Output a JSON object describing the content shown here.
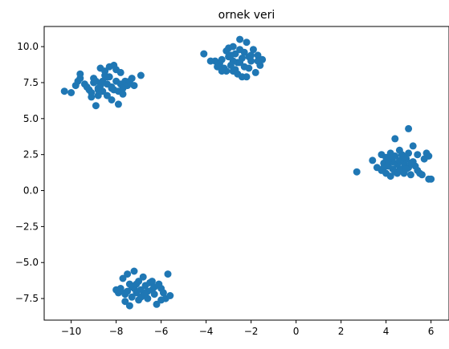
{
  "chart_data": {
    "type": "scatter",
    "title": "ornek veri",
    "xlabel": "",
    "ylabel": "",
    "xlim": [
      -11.2,
      6.8
    ],
    "ylim": [
      -9.0,
      11.4
    ],
    "x_ticks": [
      -10,
      -8,
      -6,
      -4,
      -2,
      0,
      2,
      4,
      6
    ],
    "y_ticks": [
      -7.5,
      -5.0,
      -2.5,
      0.0,
      2.5,
      5.0,
      7.5,
      10.0
    ],
    "x_tick_labels": [
      "−10",
      "−8",
      "−6",
      "−4",
      "−2",
      "0",
      "2",
      "4",
      "6"
    ],
    "y_tick_labels": [
      "−7.5",
      "−5.0",
      "−2.5",
      "0.0",
      "2.5",
      "5.0",
      "7.5",
      "10.0"
    ],
    "grid": false,
    "marker_color": "#1f77b4",
    "series": [
      {
        "points": [
          [
            -10.3,
            6.9
          ],
          [
            -10.0,
            6.8
          ],
          [
            -9.8,
            7.3
          ],
          [
            -9.7,
            7.6
          ],
          [
            -9.6,
            7.8
          ],
          [
            -9.6,
            8.1
          ],
          [
            -9.3,
            7.2
          ],
          [
            -9.2,
            7.0
          ],
          [
            -9.1,
            6.5
          ],
          [
            -9.1,
            6.8
          ],
          [
            -9.0,
            7.5
          ],
          [
            -9.0,
            7.8
          ],
          [
            -8.9,
            5.9
          ],
          [
            -8.8,
            6.6
          ],
          [
            -8.8,
            7.1
          ],
          [
            -8.7,
            7.3
          ],
          [
            -8.6,
            6.9
          ],
          [
            -8.6,
            7.6
          ],
          [
            -8.5,
            8.0
          ],
          [
            -8.5,
            8.3
          ],
          [
            -8.4,
            7.4
          ],
          [
            -8.4,
            6.6
          ],
          [
            -8.3,
            8.6
          ],
          [
            -8.3,
            7.9
          ],
          [
            -8.2,
            7.2
          ],
          [
            -8.2,
            6.3
          ],
          [
            -8.1,
            8.7
          ],
          [
            -8.1,
            7.0
          ],
          [
            -8.0,
            8.4
          ],
          [
            -8.0,
            7.6
          ],
          [
            -7.9,
            6.9
          ],
          [
            -7.9,
            6.0
          ],
          [
            -7.8,
            8.2
          ],
          [
            -7.8,
            7.4
          ],
          [
            -7.7,
            7.1
          ],
          [
            -7.6,
            7.6
          ],
          [
            -7.5,
            7.3
          ],
          [
            -7.4,
            7.6
          ],
          [
            -7.3,
            7.8
          ],
          [
            -7.2,
            7.3
          ],
          [
            -6.9,
            8.0
          ],
          [
            -8.7,
            8.5
          ],
          [
            -9.4,
            7.4
          ],
          [
            -8.8,
            7.0
          ],
          [
            -8.2,
            7.1
          ],
          [
            -7.7,
            6.7
          ],
          [
            -8.9,
            7.6
          ],
          [
            -8.4,
            7.9
          ]
        ]
      },
      {
        "points": [
          [
            -4.1,
            9.5
          ],
          [
            -3.6,
            9.0
          ],
          [
            -3.4,
            8.8
          ],
          [
            -3.3,
            9.1
          ],
          [
            -3.2,
            8.5
          ],
          [
            -3.1,
            8.3
          ],
          [
            -3.0,
            9.3
          ],
          [
            -3.0,
            9.9
          ],
          [
            -2.9,
            8.7
          ],
          [
            -2.8,
            10.0
          ],
          [
            -2.8,
            9.0
          ],
          [
            -2.7,
            9.5
          ],
          [
            -2.7,
            8.4
          ],
          [
            -2.6,
            8.9
          ],
          [
            -2.5,
            10.5
          ],
          [
            -2.5,
            9.8
          ],
          [
            -2.4,
            9.2
          ],
          [
            -2.4,
            7.9
          ],
          [
            -2.3,
            8.6
          ],
          [
            -2.3,
            9.6
          ],
          [
            -2.2,
            10.3
          ],
          [
            -2.1,
            9.3
          ],
          [
            -2.1,
            8.5
          ],
          [
            -2.0,
            9.0
          ],
          [
            -1.9,
            9.8
          ],
          [
            -1.8,
            8.2
          ],
          [
            -1.7,
            9.4
          ],
          [
            -1.6,
            8.7
          ],
          [
            -1.5,
            9.1
          ],
          [
            -2.6,
            8.1
          ],
          [
            -3.5,
            8.6
          ],
          [
            -2.9,
            9.4
          ],
          [
            -3.3,
            8.3
          ],
          [
            -2.0,
            9.4
          ],
          [
            -2.5,
            8.9
          ],
          [
            -3.8,
            9.0
          ],
          [
            -2.2,
            7.9
          ],
          [
            -1.7,
            9.0
          ],
          [
            -2.8,
            8.3
          ],
          [
            -3.1,
            9.7
          ]
        ]
      },
      {
        "points": [
          [
            2.7,
            1.3
          ],
          [
            3.4,
            2.1
          ],
          [
            3.6,
            1.6
          ],
          [
            3.8,
            1.4
          ],
          [
            3.8,
            2.5
          ],
          [
            3.9,
            1.9
          ],
          [
            4.0,
            2.3
          ],
          [
            4.0,
            1.2
          ],
          [
            4.1,
            1.7
          ],
          [
            4.2,
            2.6
          ],
          [
            4.2,
            1.0
          ],
          [
            4.3,
            2.0
          ],
          [
            4.3,
            1.5
          ],
          [
            4.4,
            3.6
          ],
          [
            4.4,
            2.4
          ],
          [
            4.5,
            1.8
          ],
          [
            4.5,
            1.2
          ],
          [
            4.6,
            2.8
          ],
          [
            4.6,
            2.1
          ],
          [
            4.7,
            1.5
          ],
          [
            4.7,
            2.5
          ],
          [
            4.8,
            1.9
          ],
          [
            4.8,
            1.2
          ],
          [
            4.9,
            2.2
          ],
          [
            5.0,
            4.3
          ],
          [
            5.0,
            1.6
          ],
          [
            5.0,
            2.6
          ],
          [
            5.1,
            1.1
          ],
          [
            5.2,
            3.1
          ],
          [
            5.2,
            2.0
          ],
          [
            5.3,
            1.7
          ],
          [
            5.4,
            2.5
          ],
          [
            5.4,
            1.4
          ],
          [
            5.5,
            1.2
          ],
          [
            5.6,
            1.1
          ],
          [
            5.7,
            2.2
          ],
          [
            5.8,
            2.6
          ],
          [
            5.9,
            0.8
          ],
          [
            5.9,
            2.4
          ],
          [
            6.0,
            0.8
          ],
          [
            4.4,
            1.3
          ],
          [
            4.9,
            1.5
          ],
          [
            4.1,
            2.1
          ],
          [
            4.6,
            1.4
          ],
          [
            3.9,
            1.6
          ],
          [
            5.1,
            1.9
          ],
          [
            4.3,
            2.4
          ],
          [
            4.8,
            2.3
          ]
        ]
      },
      {
        "points": [
          [
            -8.0,
            -6.9
          ],
          [
            -7.9,
            -7.1
          ],
          [
            -7.8,
            -6.8
          ],
          [
            -7.7,
            -6.1
          ],
          [
            -7.6,
            -7.2
          ],
          [
            -7.6,
            -7.7
          ],
          [
            -7.5,
            -5.8
          ],
          [
            -7.4,
            -8.0
          ],
          [
            -7.4,
            -6.5
          ],
          [
            -7.3,
            -7.4
          ],
          [
            -7.2,
            -6.8
          ],
          [
            -7.2,
            -5.6
          ],
          [
            -7.1,
            -7.1
          ],
          [
            -7.0,
            -6.3
          ],
          [
            -7.0,
            -7.6
          ],
          [
            -6.9,
            -6.9
          ],
          [
            -6.8,
            -6.0
          ],
          [
            -6.8,
            -7.3
          ],
          [
            -6.7,
            -6.6
          ],
          [
            -6.6,
            -7.0
          ],
          [
            -6.6,
            -7.5
          ],
          [
            -6.5,
            -6.4
          ],
          [
            -6.4,
            -6.9
          ],
          [
            -6.3,
            -7.2
          ],
          [
            -6.2,
            -7.9
          ],
          [
            -6.1,
            -6.5
          ],
          [
            -6.0,
            -6.8
          ],
          [
            -5.9,
            -7.1
          ],
          [
            -5.8,
            -7.5
          ],
          [
            -5.7,
            -5.8
          ],
          [
            -5.6,
            -7.3
          ],
          [
            -7.8,
            -7.0
          ],
          [
            -6.9,
            -7.4
          ],
          [
            -7.3,
            -6.7
          ],
          [
            -6.4,
            -6.3
          ],
          [
            -6.0,
            -7.6
          ],
          [
            -7.1,
            -6.5
          ],
          [
            -6.7,
            -7.2
          ],
          [
            -7.5,
            -7.0
          ],
          [
            -6.3,
            -6.7
          ]
        ]
      }
    ]
  }
}
